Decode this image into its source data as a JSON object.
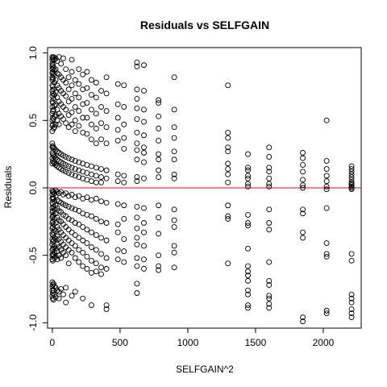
{
  "chart_data": {
    "type": "scatter",
    "title": "Residuals vs SELFGAIN",
    "xlabel": "SELFGAIN^2",
    "ylabel": "Residuals",
    "xlim": [
      -35,
      2280
    ],
    "ylim": [
      -1.04,
      1.04
    ],
    "x_ticks": [
      0,
      500,
      1000,
      1500,
      2000
    ],
    "x_tick_labels": [
      "0",
      "500",
      "1000",
      "1500",
      "2000"
    ],
    "y_ticks": [
      -1.0,
      -0.5,
      0.0,
      0.5,
      1.0
    ],
    "y_tick_labels": [
      "-1.0",
      "-0.5",
      "0.0",
      "0.5",
      "1.0"
    ],
    "reference_line": {
      "y": 0,
      "color": "#ff0000"
    },
    "grid": false,
    "legend": "none",
    "marker": "open-circle",
    "marker_color": "#000000",
    "columns": [
      {
        "x": 0,
        "residuals": [
          0.97,
          0.95,
          0.92,
          0.9,
          0.88,
          0.85,
          0.82,
          0.8,
          0.76,
          0.72,
          0.68,
          0.64,
          0.6,
          0.55,
          0.5,
          0.46,
          0.42,
          0.33,
          0.3,
          0.26,
          0.22,
          0.18,
          -0.02,
          -0.05,
          -0.08,
          -0.11,
          -0.15,
          -0.18,
          -0.22,
          -0.26,
          -0.3,
          -0.34,
          -0.38,
          -0.42,
          -0.46,
          -0.5,
          -0.53,
          -0.7,
          -0.73,
          -0.76,
          -0.8
        ]
      },
      {
        "x": 4,
        "residuals": [
          0.96,
          0.91,
          0.86,
          0.81,
          0.75,
          0.7,
          0.63,
          0.57,
          0.52,
          0.47,
          0.31,
          0.25,
          0.2,
          -0.03,
          -0.07,
          -0.12,
          -0.17,
          -0.21,
          -0.25,
          -0.29,
          -0.35,
          -0.4,
          -0.45,
          -0.49,
          -0.54,
          -0.72,
          -0.78,
          -0.82
        ]
      },
      {
        "x": 9,
        "residuals": [
          0.97,
          0.89,
          0.84,
          0.73,
          0.66,
          0.58,
          0.51,
          0.44,
          0.3,
          0.24,
          0.19,
          -0.03,
          -0.08,
          -0.14,
          -0.2,
          -0.27,
          -0.33,
          -0.39,
          -0.44,
          -0.5,
          -0.71,
          -0.76,
          -0.83
        ]
      },
      {
        "x": 16,
        "residuals": [
          0.95,
          0.87,
          0.78,
          0.69,
          0.61,
          0.53,
          0.45,
          0.29,
          0.23,
          0.18,
          -0.04,
          -0.1,
          -0.16,
          -0.23,
          -0.31,
          -0.37,
          -0.43,
          -0.48,
          -0.52,
          -0.73,
          -0.79
        ]
      },
      {
        "x": 25,
        "residuals": [
          0.96,
          0.88,
          0.8,
          0.71,
          0.62,
          0.54,
          0.47,
          0.28,
          0.22,
          0.17,
          -0.02,
          -0.06,
          -0.13,
          -0.19,
          -0.26,
          -0.32,
          -0.38,
          -0.45,
          -0.51,
          -0.74,
          -0.81
        ]
      },
      {
        "x": 36,
        "residuals": [
          0.94,
          0.85,
          0.76,
          0.67,
          0.58,
          0.5,
          0.27,
          0.21,
          0.16,
          -0.03,
          -0.09,
          -0.15,
          -0.22,
          -0.29,
          -0.36,
          -0.42,
          -0.47,
          -0.53,
          -0.76
        ]
      },
      {
        "x": 49,
        "residuals": [
          0.97,
          0.84,
          0.74,
          0.64,
          0.55,
          0.47,
          0.26,
          0.2,
          0.15,
          -0.04,
          -0.1,
          -0.17,
          -0.24,
          -0.31,
          -0.38,
          -0.44,
          -0.5,
          -0.77,
          -0.82
        ]
      },
      {
        "x": 64,
        "residuals": [
          0.92,
          0.82,
          0.72,
          0.62,
          0.53,
          0.25,
          0.19,
          0.14,
          -0.03,
          -0.11,
          -0.18,
          -0.25,
          -0.33,
          -0.4,
          -0.46,
          -0.52,
          -0.75
        ]
      },
      {
        "x": 81,
        "residuals": [
          0.96,
          0.8,
          0.7,
          0.6,
          0.51,
          0.24,
          0.18,
          0.13,
          -0.05,
          -0.12,
          -0.2,
          -0.27,
          -0.35,
          -0.42,
          -0.48,
          -0.79
        ]
      },
      {
        "x": 100,
        "residuals": [
          0.88,
          0.78,
          0.68,
          0.58,
          0.48,
          0.23,
          0.17,
          0.12,
          -0.04,
          -0.13,
          -0.21,
          -0.29,
          -0.37,
          -0.44,
          -0.5,
          -0.74,
          -0.85
        ]
      },
      {
        "x": 121,
        "residuals": [
          0.82,
          0.73,
          0.64,
          0.54,
          0.45,
          0.22,
          0.16,
          0.11,
          -0.06,
          -0.14,
          -0.23,
          -0.31,
          -0.39,
          -0.46,
          -0.56
        ]
      },
      {
        "x": 144,
        "residuals": [
          0.95,
          0.86,
          0.76,
          0.66,
          0.56,
          0.47,
          0.21,
          0.15,
          0.1,
          -0.05,
          -0.15,
          -0.24,
          -0.33,
          -0.41,
          -0.48,
          -0.8
        ]
      },
      {
        "x": 169,
        "residuals": [
          0.8,
          0.7,
          0.6,
          0.5,
          0.42,
          0.2,
          0.14,
          0.09,
          -0.07,
          -0.16,
          -0.26,
          -0.35,
          -0.43,
          -0.52,
          -0.77
        ]
      },
      {
        "x": 196,
        "residuals": [
          0.88,
          0.77,
          0.67,
          0.57,
          0.46,
          0.19,
          0.13,
          0.08,
          -0.06,
          -0.17,
          -0.27,
          -0.37,
          -0.46,
          -0.55
        ]
      },
      {
        "x": 225,
        "residuals": [
          0.84,
          0.73,
          0.62,
          0.52,
          0.41,
          0.18,
          0.12,
          0.07,
          -0.08,
          -0.19,
          -0.29,
          -0.39,
          -0.48,
          -0.58,
          -0.82
        ]
      },
      {
        "x": 256,
        "residuals": [
          0.86,
          0.74,
          0.63,
          0.52,
          0.4,
          0.17,
          0.11,
          0.06,
          -0.07,
          -0.2,
          -0.31,
          -0.41,
          -0.51,
          -0.6
        ]
      },
      {
        "x": 289,
        "residuals": [
          0.8,
          0.69,
          0.58,
          0.47,
          0.36,
          0.16,
          0.1,
          0.05,
          -0.09,
          -0.21,
          -0.33,
          -0.44,
          -0.54,
          -0.63,
          -0.87
        ]
      },
      {
        "x": 324,
        "residuals": [
          0.78,
          0.67,
          0.55,
          0.44,
          0.33,
          0.15,
          0.09,
          0.04,
          -0.08,
          -0.23,
          -0.35,
          -0.46,
          -0.56,
          -0.62
        ]
      },
      {
        "x": 361,
        "residuals": [
          0.72,
          0.6,
          0.48,
          0.36,
          0.14,
          0.08,
          0.04,
          -0.1,
          -0.25,
          -0.37,
          -0.49,
          -0.59,
          -0.64
        ]
      },
      {
        "x": 400,
        "residuals": [
          0.82,
          0.7,
          0.57,
          0.45,
          0.33,
          0.13,
          0.07,
          -0.11,
          -0.26,
          -0.39,
          -0.52,
          -0.6,
          -0.87,
          -0.9
        ]
      },
      {
        "x": 484,
        "residuals": [
          0.77,
          0.62,
          0.52,
          0.43,
          0.35,
          0.1,
          0.05,
          -0.12,
          -0.27,
          -0.33,
          -0.46,
          -0.53
        ]
      },
      {
        "x": 529,
        "residuals": [
          0.76,
          0.6,
          0.47,
          0.37,
          0.29,
          0.09,
          0.04,
          -0.13,
          -0.23,
          -0.38,
          -0.47,
          -0.55
        ]
      },
      {
        "x": 625,
        "residuals": [
          0.93,
          0.9,
          0.73,
          0.66,
          0.59,
          0.51,
          0.41,
          0.33,
          0.28,
          0.21,
          0.08,
          0.05,
          -0.14,
          -0.22,
          -0.3,
          -0.37,
          -0.42,
          -0.52,
          -0.58,
          -0.71,
          -0.78
        ]
      },
      {
        "x": 676,
        "residuals": [
          0.91,
          0.72,
          0.58,
          0.49,
          0.39,
          0.3,
          0.26,
          0.19,
          0.07,
          -0.15,
          -0.26,
          -0.33,
          -0.43,
          -0.53,
          -0.6
        ]
      },
      {
        "x": 784,
        "residuals": [
          0.65,
          0.63,
          0.53,
          0.44,
          0.35,
          0.25,
          0.21,
          0.13,
          0.08,
          -0.13,
          -0.22,
          -0.34,
          -0.5,
          -0.58,
          -0.61
        ]
      },
      {
        "x": 900,
        "residuals": [
          0.82,
          0.58,
          0.45,
          0.37,
          0.27,
          0.21,
          0.1,
          0.07,
          -0.16,
          -0.24,
          -0.29,
          -0.43,
          -0.48,
          -0.59
        ]
      },
      {
        "x": 1296,
        "residuals": [
          0.76,
          0.41,
          0.37,
          0.3,
          0.27,
          0.18,
          0.14,
          0.1,
          0.04,
          -0.13,
          -0.21,
          -0.23,
          -0.56
        ]
      },
      {
        "x": 1444,
        "residuals": [
          0.25,
          0.15,
          0.13,
          0.09,
          0.07,
          0.03,
          0.01,
          -0.2,
          -0.26,
          -0.28,
          -0.45,
          -0.58,
          -0.62,
          -0.65,
          -0.69,
          -0.76,
          -0.79,
          -0.87,
          -0.89
        ]
      },
      {
        "x": 1600,
        "residuals": [
          0.3,
          0.23,
          0.15,
          0.12,
          0.07,
          0.03,
          0.01,
          -0.16,
          -0.26,
          -0.31,
          -0.55,
          -0.69,
          -0.72,
          -0.8,
          -0.82,
          -0.86,
          -0.89
        ]
      },
      {
        "x": 1849,
        "residuals": [
          0.26,
          0.22,
          0.17,
          0.12,
          0.06,
          0.02,
          0.0,
          -0.16,
          -0.19,
          -0.33,
          -0.37,
          -0.96,
          -0.99
        ]
      },
      {
        "x": 2025,
        "residuals": [
          0.5,
          0.2,
          0.14,
          0.09,
          0.05,
          0.01,
          -0.01,
          -0.15,
          -0.41,
          -0.49,
          -0.51,
          -0.91,
          -0.93
        ]
      },
      {
        "x": 2209,
        "residuals": [
          0.16,
          0.14,
          0.12,
          0.1,
          0.08,
          0.06,
          0.04,
          0.03,
          0.02,
          0.01,
          0.0,
          -0.01,
          -0.49,
          -0.54,
          -0.79,
          -0.82,
          -0.85,
          -0.9,
          -0.93,
          -0.96
        ]
      }
    ]
  }
}
